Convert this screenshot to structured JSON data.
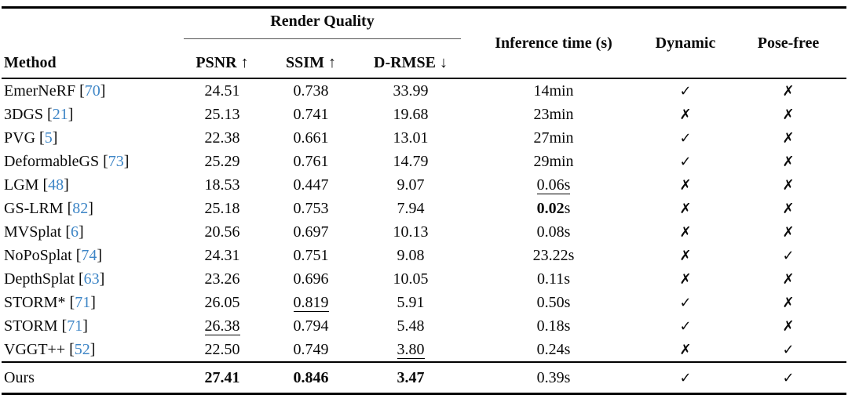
{
  "table": {
    "header": {
      "group_label": "Render Quality",
      "method_label": "Method",
      "metrics": [
        {
          "label": "PSNR",
          "arrow": "↑"
        },
        {
          "label": "SSIM",
          "arrow": "↑"
        },
        {
          "label": "D-RMSE",
          "arrow": "↓"
        }
      ],
      "inference_label": "Inference time (s)",
      "dynamic_label": "Dynamic",
      "posefree_label": "Pose-free"
    },
    "icons": {
      "check": "✓",
      "cross": "✗"
    },
    "colors": {
      "citation": "#3d85c6",
      "text": "#0a0a0a"
    },
    "rows": [
      {
        "method": "EmerNeRF",
        "cite": "70",
        "psnr": {
          "t": "24.51"
        },
        "ssim": {
          "t": "0.738"
        },
        "drmse": {
          "t": "33.99"
        },
        "time": {
          "t": "14min"
        },
        "dynamic": true,
        "posefree": false
      },
      {
        "method": "3DGS",
        "cite": "21",
        "psnr": {
          "t": "25.13"
        },
        "ssim": {
          "t": "0.741"
        },
        "drmse": {
          "t": "19.68"
        },
        "time": {
          "t": "23min"
        },
        "dynamic": false,
        "posefree": false
      },
      {
        "method": "PVG",
        "cite": "5",
        "psnr": {
          "t": "22.38"
        },
        "ssim": {
          "t": "0.661"
        },
        "drmse": {
          "t": "13.01"
        },
        "time": {
          "t": "27min"
        },
        "dynamic": true,
        "posefree": false
      },
      {
        "method": "DeformableGS",
        "cite": "73",
        "psnr": {
          "t": "25.29"
        },
        "ssim": {
          "t": "0.761"
        },
        "drmse": {
          "t": "14.79"
        },
        "time": {
          "t": "29min"
        },
        "dynamic": true,
        "posefree": false
      },
      {
        "method": "LGM",
        "cite": "48",
        "psnr": {
          "t": "18.53"
        },
        "ssim": {
          "t": "0.447"
        },
        "drmse": {
          "t": "9.07"
        },
        "time": {
          "t": "0.06s",
          "u": true
        },
        "dynamic": false,
        "posefree": false
      },
      {
        "method": "GS-LRM",
        "cite": "82",
        "psnr": {
          "t": "25.18"
        },
        "ssim": {
          "t": "0.753"
        },
        "drmse": {
          "t": "7.94"
        },
        "time": {
          "t": "0.02",
          "b": true,
          "suffix": "s"
        },
        "dynamic": false,
        "posefree": false
      },
      {
        "method": "MVSplat",
        "cite": "6",
        "psnr": {
          "t": "20.56"
        },
        "ssim": {
          "t": "0.697"
        },
        "drmse": {
          "t": "10.13"
        },
        "time": {
          "t": "0.08s"
        },
        "dynamic": false,
        "posefree": false
      },
      {
        "method": "NoPoSplat",
        "cite": "74",
        "psnr": {
          "t": "24.31"
        },
        "ssim": {
          "t": "0.751"
        },
        "drmse": {
          "t": "9.08"
        },
        "time": {
          "t": "23.22s"
        },
        "dynamic": false,
        "posefree": true
      },
      {
        "method": "DepthSplat",
        "cite": "63",
        "psnr": {
          "t": "23.26"
        },
        "ssim": {
          "t": "0.696"
        },
        "drmse": {
          "t": "10.05"
        },
        "time": {
          "t": "0.11s"
        },
        "dynamic": false,
        "posefree": false
      },
      {
        "method": "STORM*",
        "cite": "71",
        "psnr": {
          "t": "26.05"
        },
        "ssim": {
          "t": "0.819",
          "u": true
        },
        "drmse": {
          "t": "5.91"
        },
        "time": {
          "t": "0.50s"
        },
        "dynamic": true,
        "posefree": false
      },
      {
        "method": "STORM",
        "cite": "71",
        "psnr": {
          "t": "26.38",
          "u": true
        },
        "ssim": {
          "t": "0.794"
        },
        "drmse": {
          "t": "5.48"
        },
        "time": {
          "t": "0.18s"
        },
        "dynamic": true,
        "posefree": false
      },
      {
        "method": "VGGT++",
        "cite": "52",
        "psnr": {
          "t": "22.50"
        },
        "ssim": {
          "t": "0.749"
        },
        "drmse": {
          "t": "3.80",
          "u": true
        },
        "time": {
          "t": "0.24s"
        },
        "dynamic": false,
        "posefree": true
      },
      {
        "method": "Ours",
        "cite": null,
        "psnr": {
          "t": "27.41",
          "b": true
        },
        "ssim": {
          "t": "0.846",
          "b": true
        },
        "drmse": {
          "t": "3.47",
          "b": true
        },
        "time": {
          "t": "0.39s"
        },
        "dynamic": true,
        "posefree": true,
        "ours": true
      }
    ]
  }
}
